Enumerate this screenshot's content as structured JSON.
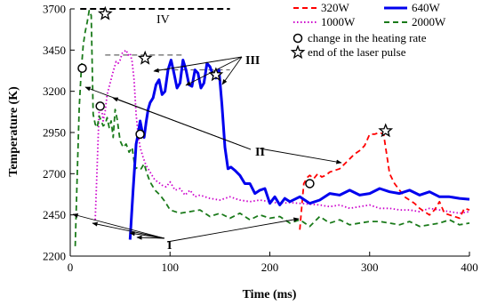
{
  "chart_data": {
    "type": "line",
    "title": "",
    "xlabel": "Time (ms)",
    "ylabel": "Temperature (K)",
    "xlim": [
      0,
      400
    ],
    "ylim": [
      2200,
      3700
    ],
    "x_ticks": [
      0,
      100,
      200,
      300,
      400
    ],
    "y_ticks": [
      2200,
      2450,
      2700,
      2950,
      3200,
      3450,
      3700
    ],
    "grid": false,
    "legend_position": "top-right",
    "series": [
      {
        "name": "320W",
        "color": "#ff0000",
        "dash": "dashed",
        "x": [
          230,
          232,
          234,
          236,
          238,
          240,
          244,
          248,
          252,
          256,
          260,
          265,
          270,
          275,
          280,
          285,
          290,
          295,
          300,
          305,
          310,
          314,
          316,
          318,
          320,
          325,
          330,
          335,
          340,
          345,
          350,
          355,
          360,
          365,
          370,
          375,
          380,
          385,
          390,
          395,
          400
        ],
        "y": [
          2360,
          2500,
          2640,
          2660,
          2680,
          2690,
          2670,
          2700,
          2680,
          2690,
          2710,
          2720,
          2730,
          2760,
          2790,
          2820,
          2840,
          2870,
          2940,
          2940,
          2950,
          2940,
          2860,
          2780,
          2700,
          2640,
          2600,
          2560,
          2540,
          2520,
          2490,
          2470,
          2450,
          2480,
          2530,
          2460,
          2450,
          2440,
          2430,
          2490,
          2480
        ]
      },
      {
        "name": "640W",
        "color": "#0000ee",
        "dash": "solid",
        "x": [
          60,
          63,
          66,
          68,
          70,
          72,
          74,
          76,
          78,
          80,
          83,
          86,
          89,
          92,
          95,
          98,
          101,
          104,
          107,
          110,
          113,
          116,
          119,
          122,
          125,
          128,
          131,
          134,
          137,
          140,
          143,
          146,
          149,
          152,
          155,
          158,
          161,
          165,
          170,
          175,
          180,
          185,
          190,
          195,
          200,
          205,
          210,
          215,
          220,
          230,
          240,
          250,
          260,
          270,
          280,
          290,
          300,
          310,
          320,
          330,
          340,
          350,
          360,
          370,
          380,
          390,
          400
        ],
        "y": [
          2300,
          2600,
          2880,
          2940,
          3020,
          2960,
          2920,
          3010,
          3090,
          3130,
          3160,
          3240,
          3270,
          3180,
          3200,
          3330,
          3390,
          3310,
          3220,
          3250,
          3390,
          3330,
          3240,
          3230,
          3330,
          3310,
          3220,
          3250,
          3370,
          3350,
          3300,
          3280,
          3330,
          3120,
          2860,
          2730,
          2740,
          2720,
          2690,
          2640,
          2640,
          2580,
          2600,
          2610,
          2520,
          2560,
          2510,
          2550,
          2530,
          2560,
          2520,
          2540,
          2580,
          2570,
          2600,
          2570,
          2580,
          2610,
          2590,
          2580,
          2600,
          2570,
          2590,
          2560,
          2560,
          2550,
          2545
        ]
      },
      {
        "name": "1000W",
        "color": "#cc00cc",
        "dash": "dotted",
        "x": [
          25,
          27,
          29,
          31,
          33,
          35,
          37,
          40,
          43,
          46,
          48,
          50,
          52,
          54,
          56,
          58,
          60,
          62,
          64,
          66,
          68,
          70,
          73,
          76,
          79,
          82,
          85,
          88,
          92,
          96,
          100,
          105,
          110,
          115,
          120,
          125,
          130,
          135,
          140,
          150,
          160,
          170,
          180,
          190,
          200,
          210,
          220,
          230,
          240,
          250,
          260,
          270,
          280,
          290,
          300,
          310,
          320,
          330,
          340,
          350,
          360,
          370,
          380,
          390,
          400
        ],
        "y": [
          2420,
          2750,
          3100,
          3120,
          3020,
          3080,
          3180,
          3250,
          3320,
          3380,
          3370,
          3390,
          3430,
          3440,
          3450,
          3420,
          3430,
          3380,
          3270,
          3060,
          2940,
          2860,
          2800,
          2750,
          2720,
          2690,
          2660,
          2650,
          2630,
          2620,
          2650,
          2600,
          2610,
          2570,
          2600,
          2560,
          2570,
          2560,
          2550,
          2540,
          2560,
          2540,
          2530,
          2540,
          2530,
          2520,
          2525,
          2520,
          2515,
          2510,
          2500,
          2510,
          2490,
          2500,
          2510,
          2490,
          2490,
          2480,
          2480,
          2470,
          2490,
          2480,
          2470,
          2460,
          2470
        ]
      },
      {
        "name": "2000W",
        "color": "#1a7a1a",
        "dash": "dashed",
        "x": [
          5,
          7,
          9,
          11,
          13,
          15,
          17,
          19,
          21,
          23,
          25,
          27,
          29,
          31,
          33,
          35,
          37,
          39,
          41,
          43,
          45,
          47,
          50,
          53,
          56,
          59,
          62,
          65,
          68,
          71,
          74,
          77,
          80,
          85,
          90,
          95,
          100,
          110,
          120,
          130,
          140,
          150,
          160,
          170,
          180,
          190,
          200,
          210,
          220,
          230,
          240,
          250,
          260,
          270,
          280,
          290,
          300,
          310,
          320,
          330,
          340,
          350,
          360,
          370,
          380,
          390,
          400
        ],
        "y": [
          2260,
          2700,
          3100,
          3320,
          3480,
          3560,
          3620,
          3690,
          3660,
          3060,
          3000,
          2980,
          3050,
          3020,
          2990,
          3000,
          3040,
          2980,
          3020,
          2920,
          3090,
          3030,
          2900,
          2860,
          2880,
          2830,
          2860,
          2730,
          2740,
          2730,
          2760,
          2700,
          2650,
          2600,
          2570,
          2530,
          2480,
          2460,
          2470,
          2480,
          2440,
          2460,
          2430,
          2460,
          2420,
          2450,
          2430,
          2440,
          2400,
          2420,
          2380,
          2440,
          2400,
          2420,
          2390,
          2400,
          2410,
          2410,
          2400,
          2390,
          2410,
          2380,
          2390,
          2400,
          2420,
          2390,
          2400
        ]
      }
    ],
    "markers": {
      "change_in_heating_rate": [
        {
          "x": 12,
          "y": 3340
        },
        {
          "x": 30,
          "y": 3110
        },
        {
          "x": 70,
          "y": 2940
        },
        {
          "x": 240,
          "y": 2640
        }
      ],
      "end_of_laser_pulse": [
        {
          "x": 35,
          "y": 3670
        },
        {
          "x": 75,
          "y": 3400
        },
        {
          "x": 146,
          "y": 3300
        },
        {
          "x": 316,
          "y": 2960
        }
      ]
    },
    "legend_markers": {
      "circle_label": "change in the heating rate",
      "star_label": "end of the laser pulse"
    },
    "reference_lines": [
      {
        "y": 3700,
        "x_from": 10,
        "x_to": 160
      },
      {
        "y": 3420,
        "x_from": 35,
        "x_to": 115
      },
      {
        "y": 3330,
        "x_from": 85,
        "x_to": 160
      }
    ],
    "annotations": {
      "region_I": "I",
      "region_II": "II",
      "region_III": "III",
      "region_IV": "IV"
    }
  }
}
